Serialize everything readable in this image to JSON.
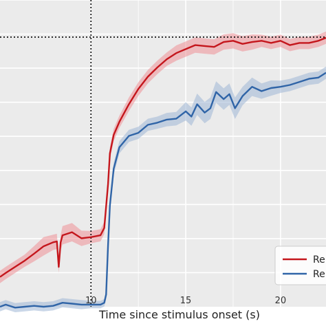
{
  "chart_data": {
    "type": "line",
    "title": "",
    "xlabel": "Time since stimulus onset (s)",
    "ylabel": "",
    "xlim": [
      5.2,
      22.4
    ],
    "ylim": [
      0.0,
      1.0
    ],
    "x_ticks": [
      10,
      15,
      20
    ],
    "grid": true,
    "background": "#ebebeb",
    "legend": {
      "placement": "lower-right",
      "entries": [
        "Re",
        "Re"
      ]
    },
    "reference_lines": [
      {
        "orientation": "vertical",
        "x": 10,
        "style": "dotted",
        "color": "#000000"
      },
      {
        "orientation": "horizontal",
        "y": 0.879,
        "style": "dotted",
        "color": "#000000"
      }
    ],
    "series": [
      {
        "color": "#c4161c",
        "band_color": "#ee8f95",
        "x": [
          5.2,
          5.5,
          6.0,
          6.5,
          7.0,
          7.5,
          8.0,
          8.2,
          8.3,
          8.4,
          8.5,
          9.0,
          9.5,
          10.0,
          10.5,
          10.7,
          10.9,
          11.0,
          11.2,
          11.5,
          12.0,
          12.5,
          13.0,
          13.5,
          14.0,
          14.5,
          15.0,
          15.5,
          16.0,
          16.5,
          17.0,
          17.5,
          18.0,
          18.5,
          19.0,
          19.5,
          20.0,
          20.5,
          21.0,
          21.5,
          22.0,
          22.4
        ],
        "y": [
          0.097,
          0.11,
          0.13,
          0.15,
          0.173,
          0.197,
          0.21,
          0.213,
          0.13,
          0.21,
          0.233,
          0.243,
          0.223,
          0.227,
          0.233,
          0.257,
          0.4,
          0.5,
          0.56,
          0.603,
          0.66,
          0.71,
          0.75,
          0.78,
          0.807,
          0.827,
          0.84,
          0.853,
          0.85,
          0.847,
          0.863,
          0.867,
          0.857,
          0.863,
          0.867,
          0.86,
          0.867,
          0.853,
          0.86,
          0.86,
          0.867,
          0.877
        ],
        "band": [
          0.02,
          0.02,
          0.02,
          0.02,
          0.025,
          0.03,
          0.025,
          0.025,
          0.02,
          0.025,
          0.03,
          0.03,
          0.025,
          0.02,
          0.02,
          0.02,
          0.02,
          0.02,
          0.02,
          0.02,
          0.022,
          0.022,
          0.022,
          0.022,
          0.022,
          0.025,
          0.025,
          0.025,
          0.025,
          0.025,
          0.025,
          0.025,
          0.025,
          0.025,
          0.02,
          0.02,
          0.02,
          0.02,
          0.02,
          0.02,
          0.02,
          0.02
        ]
      },
      {
        "color": "#2f64a7",
        "band_color": "#9fb6d6",
        "x": [
          5.2,
          5.5,
          6.0,
          6.5,
          7.0,
          7.5,
          8.0,
          8.5,
          9.0,
          9.5,
          10.0,
          10.5,
          10.7,
          10.8,
          10.9,
          11.0,
          11.2,
          11.5,
          12.0,
          12.5,
          13.0,
          13.5,
          14.0,
          14.5,
          15.0,
          15.3,
          15.6,
          16.0,
          16.3,
          16.6,
          17.0,
          17.3,
          17.6,
          18.0,
          18.5,
          19.0,
          19.5,
          20.0,
          20.5,
          21.0,
          21.5,
          22.0,
          22.4
        ],
        "y": [
          0.0,
          0.007,
          -0.003,
          0.0,
          0.003,
          0.0,
          0.003,
          0.013,
          0.01,
          0.007,
          0.007,
          0.007,
          0.013,
          0.04,
          0.2,
          0.33,
          0.45,
          0.52,
          0.557,
          0.567,
          0.593,
          0.6,
          0.61,
          0.613,
          0.637,
          0.62,
          0.66,
          0.633,
          0.647,
          0.7,
          0.677,
          0.693,
          0.647,
          0.687,
          0.717,
          0.703,
          0.713,
          0.717,
          0.723,
          0.733,
          0.743,
          0.747,
          0.763
        ],
        "band": [
          0.015,
          0.015,
          0.015,
          0.015,
          0.015,
          0.015,
          0.015,
          0.015,
          0.015,
          0.015,
          0.012,
          0.012,
          0.012,
          0.015,
          0.02,
          0.02,
          0.02,
          0.02,
          0.02,
          0.02,
          0.02,
          0.02,
          0.022,
          0.022,
          0.03,
          0.03,
          0.035,
          0.035,
          0.035,
          0.035,
          0.035,
          0.035,
          0.035,
          0.03,
          0.03,
          0.025,
          0.025,
          0.02,
          0.02,
          0.02,
          0.02,
          0.02,
          0.02
        ]
      }
    ]
  }
}
